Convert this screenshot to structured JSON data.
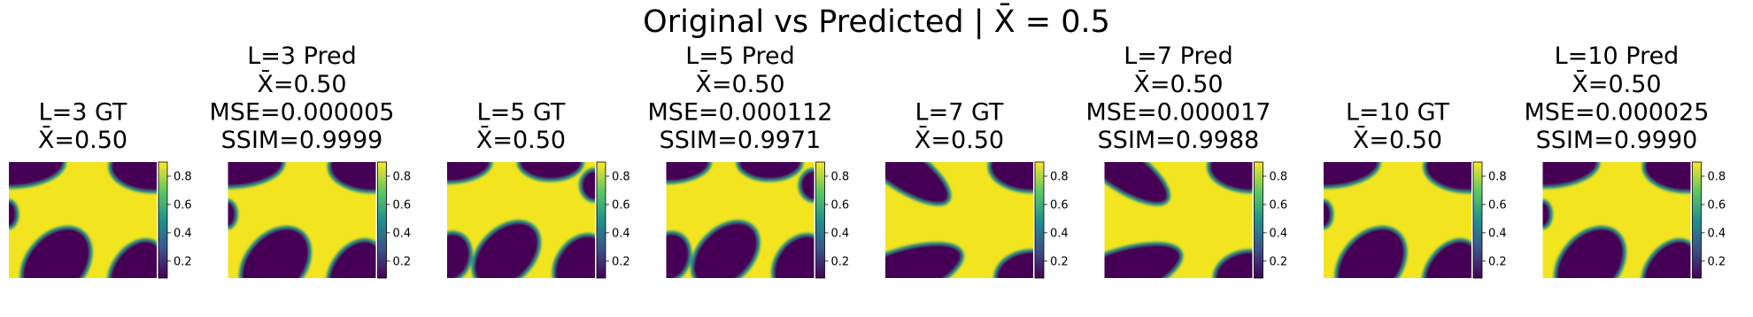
{
  "title": "Original vs Predicted | X̄ = 0.5",
  "chart_data": [
    {
      "type": "heatmap",
      "title": [
        "L=3 GT",
        "X̄=0.50"
      ],
      "clim": [
        0.08,
        0.9
      ],
      "cticks": [
        0.2,
        0.4,
        0.6,
        0.8
      ]
    },
    {
      "type": "heatmap",
      "title": [
        "L=3 Pred",
        "X̄=0.50",
        "MSE=0.000005",
        "SSIM=0.9999"
      ],
      "clim": [
        0.08,
        0.9
      ],
      "cticks": [
        0.2,
        0.4,
        0.6,
        0.8
      ]
    },
    {
      "type": "heatmap",
      "title": [
        "L=5 GT",
        "X̄=0.50"
      ],
      "clim": [
        0.08,
        0.9
      ],
      "cticks": [
        0.2,
        0.4,
        0.6,
        0.8
      ]
    },
    {
      "type": "heatmap",
      "title": [
        "L=5 Pred",
        "X̄=0.50",
        "MSE=0.000112",
        "SSIM=0.9971"
      ],
      "clim": [
        0.08,
        0.9
      ],
      "cticks": [
        0.2,
        0.4,
        0.6,
        0.8
      ]
    },
    {
      "type": "heatmap",
      "title": [
        "L=7 GT",
        "X̄=0.50"
      ],
      "clim": [
        0.08,
        0.9
      ],
      "cticks": [
        0.2,
        0.4,
        0.6,
        0.8
      ]
    },
    {
      "type": "heatmap",
      "title": [
        "L=7 Pred",
        "X̄=0.50",
        "MSE=0.000017",
        "SSIM=0.9988"
      ],
      "clim": [
        0.08,
        0.9
      ],
      "cticks": [
        0.2,
        0.4,
        0.6,
        0.8
      ]
    },
    {
      "type": "heatmap",
      "title": [
        "L=10 GT",
        "X̄=0.50"
      ],
      "clim": [
        0.08,
        0.9
      ],
      "cticks": [
        0.2,
        0.4,
        0.6,
        0.8
      ]
    },
    {
      "type": "heatmap",
      "title": [
        "L=10 Pred",
        "X̄=0.50",
        "MSE=0.000025",
        "SSIM=0.9990"
      ],
      "clim": [
        0.08,
        0.9
      ],
      "cticks": [
        0.2,
        0.4,
        0.6,
        0.8
      ]
    }
  ]
}
